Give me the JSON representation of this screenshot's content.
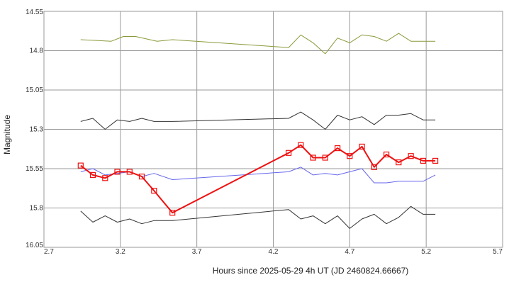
{
  "chart_data": {
    "type": "line",
    "title": "",
    "xlabel": "Hours since 2025-05-29 4h UT (JD 2460824.66667)",
    "ylabel": "Magnitude",
    "xlim": [
      2.7,
      5.7
    ],
    "ylim": [
      14.55,
      16.05
    ],
    "y_inverted": true,
    "grid": true,
    "legend": "none",
    "x_ticks": [
      "2.7",
      "3.2",
      "3.7",
      "4.2",
      "4.7",
      "5.2",
      "5.7"
    ],
    "y_ticks": [
      "14.55",
      "14.8",
      "15.05",
      "15.3",
      "15.55",
      "15.8",
      "16.05"
    ],
    "series": [
      {
        "color": "#8a9a3a",
        "width": 1,
        "markers": false,
        "x": [
          2.94,
          3.14,
          3.22,
          3.3,
          3.44,
          3.54,
          4.3,
          4.38,
          4.46,
          4.54,
          4.62,
          4.7,
          4.78,
          4.86,
          4.94,
          5.02,
          5.1,
          5.18,
          5.26
        ],
        "y": [
          14.73,
          14.74,
          14.71,
          14.71,
          14.74,
          14.73,
          14.78,
          14.7,
          14.75,
          14.82,
          14.72,
          14.75,
          14.7,
          14.71,
          14.74,
          14.69,
          14.74,
          14.74,
          14.74
        ]
      },
      {
        "color": "#333333",
        "width": 1,
        "markers": false,
        "x": [
          2.94,
          3.02,
          3.1,
          3.18,
          3.26,
          3.34,
          3.42,
          3.54,
          4.3,
          4.38,
          4.46,
          4.54,
          4.62,
          4.7,
          4.78,
          4.86,
          4.94,
          5.02,
          5.1,
          5.18,
          5.26
        ],
        "y": [
          15.25,
          15.23,
          15.3,
          15.24,
          15.25,
          15.23,
          15.25,
          15.25,
          15.23,
          15.19,
          15.24,
          15.3,
          15.21,
          15.24,
          15.22,
          15.27,
          15.21,
          15.21,
          15.2,
          15.24,
          15.24
        ]
      },
      {
        "color": "#6666ee",
        "width": 1,
        "markers": false,
        "x": [
          2.94,
          3.02,
          3.1,
          3.18,
          3.26,
          3.34,
          3.42,
          3.54,
          4.3,
          4.38,
          4.46,
          4.54,
          4.62,
          4.7,
          4.78,
          4.86,
          4.94,
          5.02,
          5.1,
          5.18,
          5.26
        ],
        "y": [
          15.57,
          15.55,
          15.59,
          15.58,
          15.57,
          15.6,
          15.58,
          15.62,
          15.57,
          15.54,
          15.59,
          15.58,
          15.59,
          15.57,
          15.55,
          15.64,
          15.64,
          15.63,
          15.63,
          15.63,
          15.59
        ]
      },
      {
        "color": "#ee1111",
        "width": 2,
        "markers": true,
        "x": [
          2.94,
          3.02,
          3.1,
          3.18,
          3.26,
          3.34,
          3.42,
          3.54,
          4.3,
          4.38,
          4.46,
          4.54,
          4.62,
          4.7,
          4.78,
          4.86,
          4.94,
          5.02,
          5.1,
          5.18,
          5.26
        ],
        "y": [
          15.53,
          15.59,
          15.61,
          15.57,
          15.57,
          15.6,
          15.69,
          15.83,
          15.45,
          15.4,
          15.48,
          15.48,
          15.42,
          15.47,
          15.41,
          15.54,
          15.46,
          15.51,
          15.47,
          15.5,
          15.5
        ]
      },
      {
        "color": "#333333",
        "width": 1,
        "markers": false,
        "x": [
          2.94,
          3.02,
          3.1,
          3.18,
          3.26,
          3.34,
          3.42,
          3.54,
          4.3,
          4.38,
          4.46,
          4.54,
          4.62,
          4.7,
          4.78,
          4.86,
          4.94,
          5.02,
          5.1,
          5.18,
          5.26
        ],
        "y": [
          15.82,
          15.89,
          15.85,
          15.89,
          15.87,
          15.9,
          15.88,
          15.88,
          15.81,
          15.87,
          15.85,
          15.9,
          15.85,
          15.93,
          15.87,
          15.84,
          15.9,
          15.86,
          15.79,
          15.84,
          15.84
        ]
      }
    ]
  }
}
